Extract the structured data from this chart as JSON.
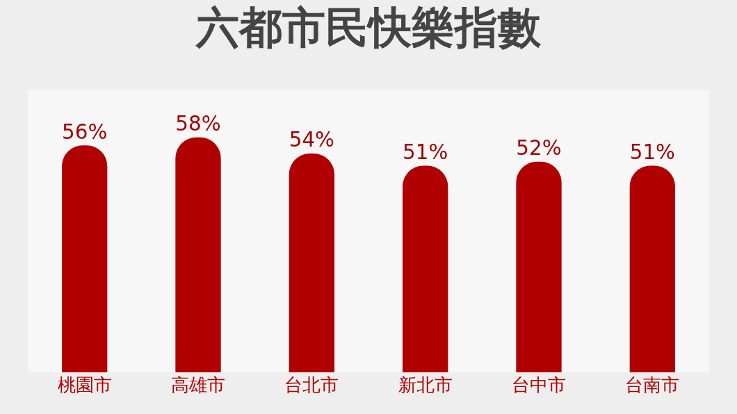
{
  "chart_data": {
    "type": "bar",
    "title": "六都市民快樂指數",
    "categories": [
      "桃園市",
      "高雄市",
      "台北市",
      "新北市",
      "台中市",
      "台南市"
    ],
    "values": [
      56,
      58,
      54,
      51,
      52,
      51
    ],
    "value_labels": [
      "56%",
      "58%",
      "54%",
      "51%",
      "52%",
      "51%"
    ],
    "color": "#b00000",
    "grid": false,
    "legend": false
  }
}
